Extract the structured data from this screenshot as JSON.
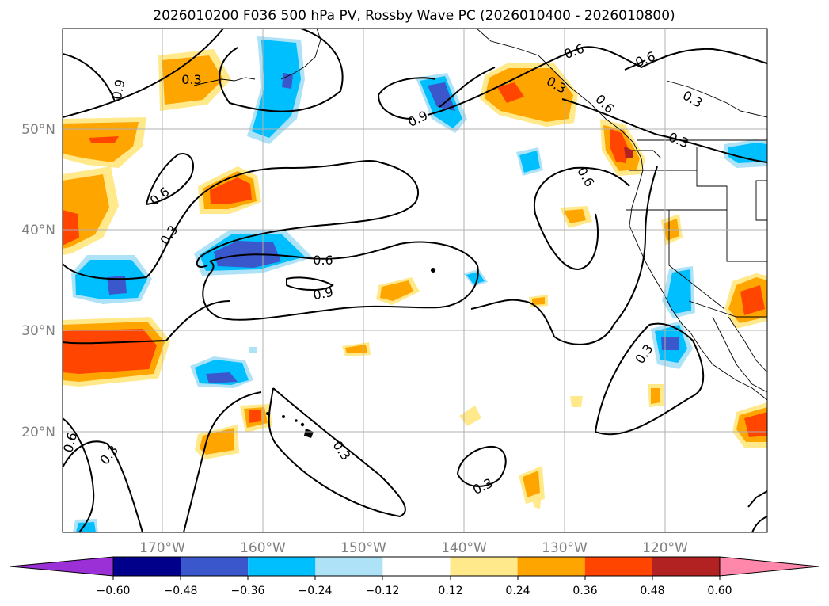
{
  "title": "2026010200 F036 500 hPa PV, Rossby Wave PC (2026010400 - 2026010800)",
  "lat_labels": [
    "50°N",
    "40°N",
    "30°N",
    "20°N"
  ],
  "lon_labels": [
    "170°W",
    "160°W",
    "150°W",
    "140°W",
    "130°W",
    "120°W"
  ],
  "colorbar": {
    "colors": [
      "#9b30d6",
      "#00008b",
      "#3a57cc",
      "#00bfff",
      "#aee2f7",
      "#ffffff",
      "#ffe98a",
      "#ffa500",
      "#ff4500",
      "#b22222",
      "#ff88aa"
    ],
    "tick_labels": [
      "−0.60",
      "−0.48",
      "−0.36",
      "−0.24",
      "−0.12",
      "0.12",
      "0.24",
      "0.36",
      "0.48",
      "0.60"
    ]
  },
  "contour_labels": [
    "0.3",
    "0.6",
    "0.9",
    "0.6",
    "0.9",
    "0.6",
    "0.3",
    "0.6",
    "0.3",
    "0.6",
    "0.3",
    "0.6",
    "0.3",
    "0.9",
    "0.3",
    "0.6",
    "0.3",
    "0.3",
    "0.3"
  ]
}
